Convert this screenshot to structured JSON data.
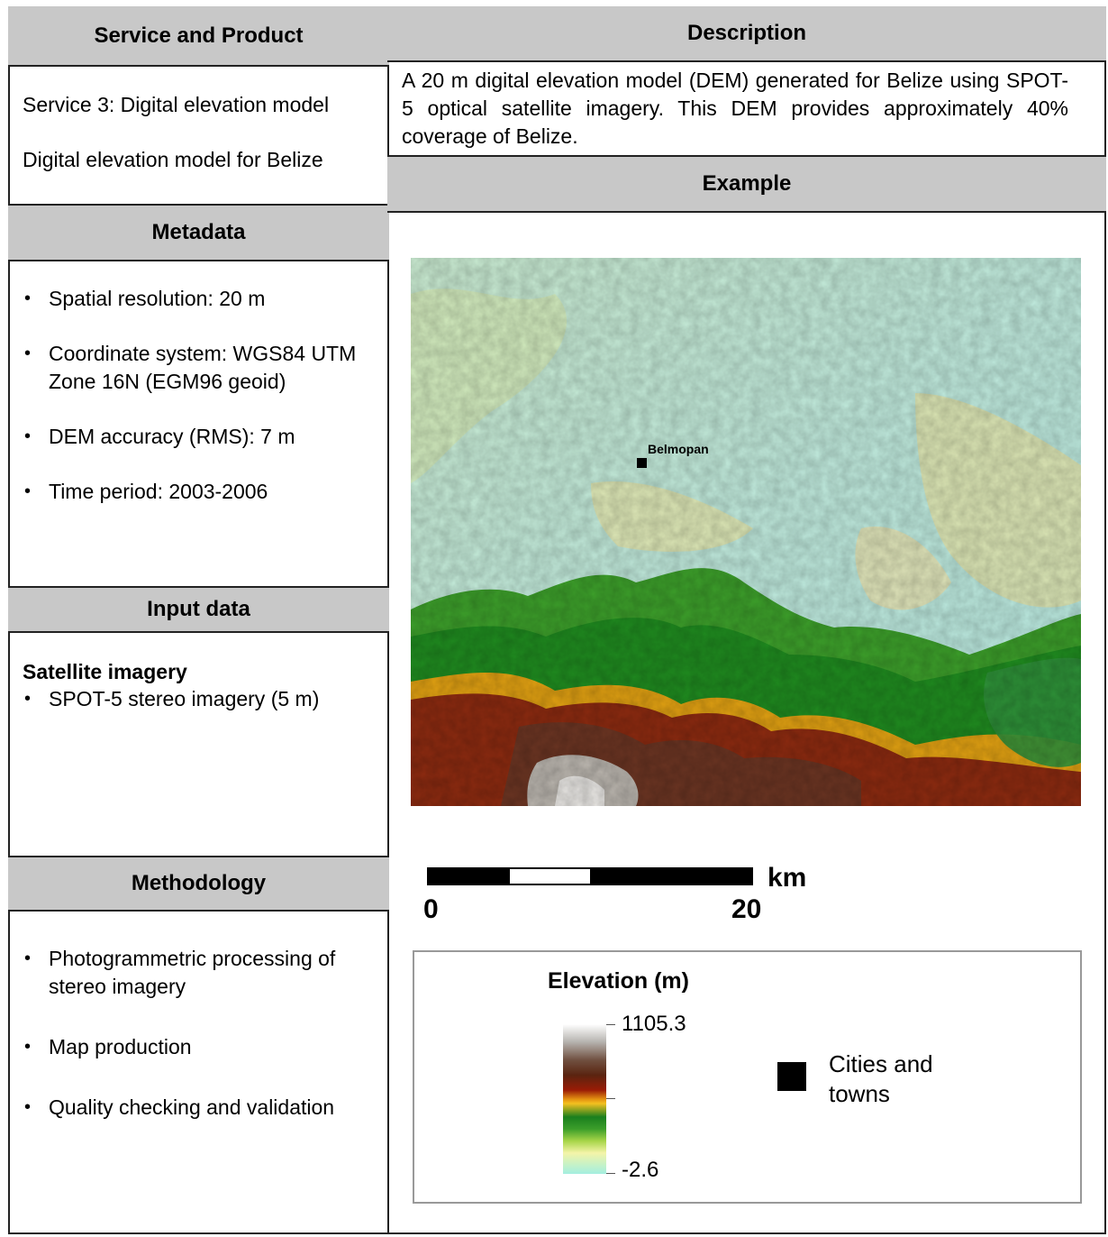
{
  "left": {
    "service_header": "Service and Product",
    "service_line": "Service 3: Digital elevation model",
    "product_line": "Digital elevation model for Belize",
    "metadata_header": "Metadata",
    "metadata_items": [
      "Spatial resolution: 20 m",
      "Coordinate system: WGS84 UTM Zone 16N (EGM96 geoid)",
      "DEM accuracy (RMS): 7 m",
      "Time period: 2003-2006"
    ],
    "input_header": "Input data",
    "input_subheading": "Satellite imagery",
    "input_items": [
      "SPOT-5 stereo imagery (5 m)"
    ],
    "methodology_header": "Methodology",
    "methodology_items": [
      "Photogrammetric processing of stereo imagery",
      "Map production",
      "Quality checking and validation"
    ]
  },
  "right": {
    "description_header": "Description",
    "description_text": "A 20 m digital elevation model (DEM) generated for Belize using SPOT-5 optical satellite imagery. This DEM provides approximately 40% coverage of Belize.",
    "example_header": "Example",
    "map": {
      "city_label": "Belmopan"
    },
    "scale": {
      "unit": "km",
      "start": "0",
      "end": "20",
      "segments": [
        "#000000",
        "#ffffff",
        "#000000",
        "#000000"
      ]
    },
    "legend": {
      "title": "Elevation (m)",
      "max": "1105.3",
      "min": "-2.6",
      "symbol_label": "Cities and towns"
    }
  }
}
